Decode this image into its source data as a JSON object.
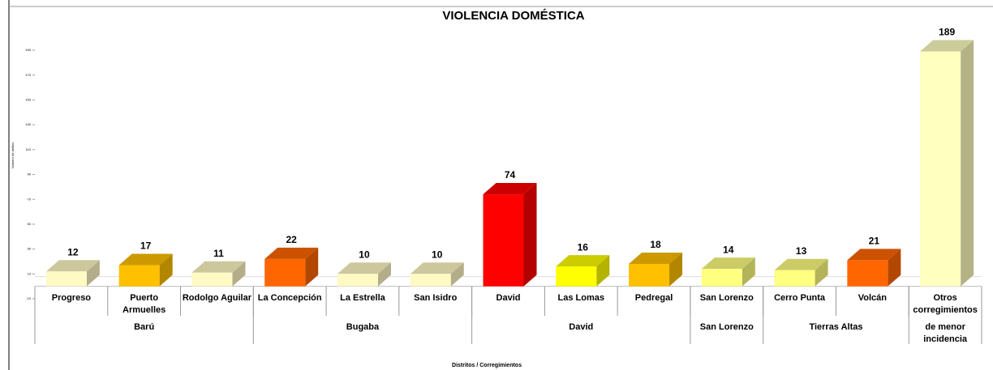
{
  "chart_data": {
    "type": "bar3d",
    "title": "VIOLENCIA DOMÉSTICA",
    "y_label": "Número de delitos",
    "x_label": "Distritos / Corregimientos",
    "categories": [
      "Progreso",
      "Puerto Armuelles",
      "Rodolgo Aguilar",
      "La Concepción",
      "La Estrella",
      "San Isidro",
      "David",
      "Las Lomas",
      "Pedregal",
      "San Lorenzo",
      "Cerro Punta",
      "Volcán",
      "Otros corregimientos"
    ],
    "values": [
      12,
      17,
      11,
      22,
      10,
      10,
      74,
      16,
      18,
      14,
      13,
      21,
      189
    ],
    "colors": [
      "#fff9c4",
      "#ffc000",
      "#fff9c4",
      "#ff6600",
      "#fff9c4",
      "#fff9c4",
      "#ff0000",
      "#ffff00",
      "#ffc000",
      "#ffff80",
      "#ffff80",
      "#ff6600",
      "#ffffc0"
    ],
    "groups": [
      {
        "label": "Barú",
        "start": 0,
        "end": 2
      },
      {
        "label": "Bugaba",
        "start": 3,
        "end": 5
      },
      {
        "label": "David",
        "start": 6,
        "end": 8
      },
      {
        "label": "San Lorenzo",
        "start": 9,
        "end": 9
      },
      {
        "label": "Tierras Altas",
        "start": 10,
        "end": 11
      },
      {
        "label": "de menor incidencia",
        "start": 12,
        "end": 12
      }
    ],
    "ylim": [
      -10,
      190
    ],
    "yticks": [
      -10,
      10,
      30,
      50,
      70,
      90,
      110,
      130,
      150,
      170,
      190
    ]
  }
}
